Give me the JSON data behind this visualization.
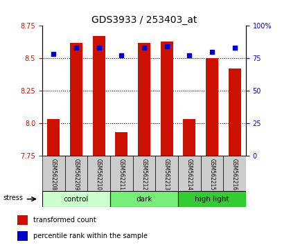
{
  "title": "GDS3933 / 253403_at",
  "samples": [
    "GSM562208",
    "GSM562209",
    "GSM562210",
    "GSM562211",
    "GSM562212",
    "GSM562213",
    "GSM562214",
    "GSM562215",
    "GSM562216"
  ],
  "red_values": [
    8.03,
    8.62,
    8.67,
    7.93,
    8.62,
    8.63,
    8.03,
    8.5,
    8.42
  ],
  "blue_values": [
    78,
    83,
    83,
    77,
    83,
    84,
    77,
    80,
    83
  ],
  "ylim_left": [
    7.75,
    8.75
  ],
  "ylim_right": [
    0,
    100
  ],
  "yticks_left": [
    7.75,
    8.0,
    8.25,
    8.5,
    8.75
  ],
  "yticks_right": [
    0,
    25,
    50,
    75,
    100
  ],
  "ytick_labels_right": [
    "0",
    "25",
    "50",
    "75",
    "100%"
  ],
  "groups": [
    {
      "label": "control",
      "indices": [
        0,
        1,
        2
      ],
      "color": "#ccffcc"
    },
    {
      "label": "dark",
      "indices": [
        3,
        4,
        5
      ],
      "color": "#77ee77"
    },
    {
      "label": "high light",
      "indices": [
        6,
        7,
        8
      ],
      "color": "#33cc33"
    }
  ],
  "bar_color": "#cc1100",
  "dot_color": "#0000cc",
  "bar_bottom": 7.75,
  "bar_width": 0.55,
  "sample_label_area_color": "#cccccc",
  "grid_linestyle": ":",
  "grid_color": "#000000",
  "grid_linewidth": 0.8,
  "grid_ticks": [
    8.0,
    8.25,
    8.5
  ],
  "title_fontsize": 10,
  "tick_labelsize": 7,
  "stress_label": "stress"
}
